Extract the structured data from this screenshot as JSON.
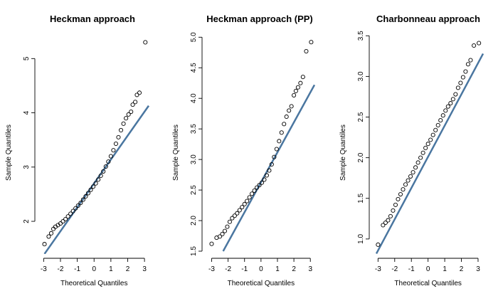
{
  "chart_data": [
    {
      "type": "scatter",
      "title": "Heckman approach",
      "xlabel": "Theoretical Quantiles",
      "ylabel": "Sample Quantiles",
      "xlim": [
        -3.1,
        3.25
      ],
      "ylim": [
        1.45,
        5.45
      ],
      "xticks": [
        -3,
        -2,
        -1,
        0,
        1,
        2,
        3
      ],
      "yticks": [
        2,
        3,
        4,
        5
      ],
      "grid": false,
      "legend": "none",
      "point_color": "#000000",
      "line_color": "#4a76a0",
      "reference_line": {
        "x1": -2.95,
        "y1": 1.4,
        "x2": 3.25,
        "y2": 4.13
      },
      "points": [
        [
          -2.95,
          1.58
        ],
        [
          -2.7,
          1.72
        ],
        [
          -2.55,
          1.78
        ],
        [
          -2.42,
          1.86
        ],
        [
          -2.3,
          1.9
        ],
        [
          -2.15,
          1.93
        ],
        [
          -2.0,
          1.96
        ],
        [
          -1.85,
          2.0
        ],
        [
          -1.7,
          2.04
        ],
        [
          -1.55,
          2.09
        ],
        [
          -1.4,
          2.14
        ],
        [
          -1.25,
          2.19
        ],
        [
          -1.1,
          2.24
        ],
        [
          -0.95,
          2.29
        ],
        [
          -0.8,
          2.34
        ],
        [
          -0.65,
          2.4
        ],
        [
          -0.5,
          2.46
        ],
        [
          -0.35,
          2.52
        ],
        [
          -0.2,
          2.58
        ],
        [
          -0.05,
          2.64
        ],
        [
          0.1,
          2.7
        ],
        [
          0.25,
          2.77
        ],
        [
          0.4,
          2.84
        ],
        [
          0.55,
          2.92
        ],
        [
          0.7,
          3.01
        ],
        [
          0.85,
          3.1
        ],
        [
          1.0,
          3.2
        ],
        [
          1.15,
          3.31
        ],
        [
          1.3,
          3.43
        ],
        [
          1.45,
          3.55
        ],
        [
          1.6,
          3.68
        ],
        [
          1.75,
          3.8
        ],
        [
          1.9,
          3.9
        ],
        [
          2.05,
          3.97
        ],
        [
          2.2,
          4.02
        ],
        [
          2.3,
          4.15
        ],
        [
          2.45,
          4.2
        ],
        [
          2.55,
          4.33
        ],
        [
          2.7,
          4.37
        ],
        [
          3.05,
          5.3
        ]
      ]
    },
    {
      "type": "scatter",
      "title": "Heckman approach (PP)",
      "xlabel": "Theoretical Quantiles",
      "ylabel": "Sample Quantiles",
      "xlim": [
        -3.15,
        3.25
      ],
      "ylim": [
        1.5,
        5.05
      ],
      "xticks": [
        -3,
        -2,
        -1,
        0,
        1,
        2,
        3
      ],
      "yticks": [
        1.5,
        2.0,
        2.5,
        3.0,
        3.5,
        4.0,
        4.5,
        5.0
      ],
      "grid": false,
      "legend": "none",
      "point_color": "#000000",
      "line_color": "#4a76a0",
      "reference_line": {
        "x1": -2.3,
        "y1": 1.5,
        "x2": 3.25,
        "y2": 4.22
      },
      "points": [
        [
          -3.0,
          1.62
        ],
        [
          -2.7,
          1.72
        ],
        [
          -2.5,
          1.74
        ],
        [
          -2.35,
          1.78
        ],
        [
          -2.2,
          1.83
        ],
        [
          -2.05,
          1.9
        ],
        [
          -1.9,
          1.98
        ],
        [
          -1.75,
          2.04
        ],
        [
          -1.6,
          2.08
        ],
        [
          -1.45,
          2.12
        ],
        [
          -1.3,
          2.17
        ],
        [
          -1.15,
          2.22
        ],
        [
          -1.0,
          2.27
        ],
        [
          -0.85,
          2.32
        ],
        [
          -0.7,
          2.38
        ],
        [
          -0.55,
          2.44
        ],
        [
          -0.4,
          2.49
        ],
        [
          -0.25,
          2.54
        ],
        [
          -0.1,
          2.58
        ],
        [
          0.05,
          2.62
        ],
        [
          0.2,
          2.67
        ],
        [
          0.35,
          2.74
        ],
        [
          0.5,
          2.82
        ],
        [
          0.65,
          2.92
        ],
        [
          0.8,
          3.04
        ],
        [
          0.95,
          3.17
        ],
        [
          1.1,
          3.3
        ],
        [
          1.25,
          3.44
        ],
        [
          1.4,
          3.58
        ],
        [
          1.55,
          3.7
        ],
        [
          1.7,
          3.8
        ],
        [
          1.85,
          3.87
        ],
        [
          2.0,
          4.05
        ],
        [
          2.12,
          4.12
        ],
        [
          2.25,
          4.18
        ],
        [
          2.4,
          4.25
        ],
        [
          2.55,
          4.35
        ],
        [
          2.75,
          4.77
        ],
        [
          3.05,
          4.92
        ]
      ]
    },
    {
      "type": "scatter",
      "title": "Charbonneau approach",
      "xlabel": "Theoretical Quantiles",
      "ylabel": "Sample Quantiles",
      "xlim": [
        -3.1,
        3.3
      ],
      "ylim": [
        0.85,
        3.52
      ],
      "xticks": [
        -3,
        -2,
        -1,
        0,
        1,
        2,
        3
      ],
      "yticks": [
        1.0,
        1.5,
        2.0,
        2.5,
        3.0,
        3.5
      ],
      "grid": false,
      "legend": "none",
      "point_color": "#000000",
      "line_color": "#4a76a0",
      "reference_line": {
        "x1": -3.1,
        "y1": 0.82,
        "x2": 3.3,
        "y2": 3.28
      },
      "points": [
        [
          -3.0,
          0.93
        ],
        [
          -2.7,
          1.17
        ],
        [
          -2.55,
          1.2
        ],
        [
          -2.4,
          1.23
        ],
        [
          -2.25,
          1.28
        ],
        [
          -2.1,
          1.35
        ],
        [
          -1.95,
          1.42
        ],
        [
          -1.8,
          1.49
        ],
        [
          -1.65,
          1.55
        ],
        [
          -1.5,
          1.61
        ],
        [
          -1.35,
          1.67
        ],
        [
          -1.2,
          1.72
        ],
        [
          -1.05,
          1.77
        ],
        [
          -0.9,
          1.82
        ],
        [
          -0.75,
          1.88
        ],
        [
          -0.6,
          1.94
        ],
        [
          -0.45,
          2.0
        ],
        [
          -0.3,
          2.06
        ],
        [
          -0.15,
          2.12
        ],
        [
          0.0,
          2.17
        ],
        [
          0.15,
          2.22
        ],
        [
          0.3,
          2.28
        ],
        [
          0.45,
          2.34
        ],
        [
          0.6,
          2.4
        ],
        [
          0.75,
          2.46
        ],
        [
          0.9,
          2.52
        ],
        [
          1.05,
          2.58
        ],
        [
          1.2,
          2.63
        ],
        [
          1.35,
          2.67
        ],
        [
          1.5,
          2.72
        ],
        [
          1.65,
          2.78
        ],
        [
          1.8,
          2.86
        ],
        [
          1.95,
          2.92
        ],
        [
          2.1,
          2.99
        ],
        [
          2.25,
          3.06
        ],
        [
          2.4,
          3.15
        ],
        [
          2.55,
          3.2
        ],
        [
          2.75,
          3.38
        ],
        [
          3.05,
          3.41
        ]
      ]
    }
  ]
}
